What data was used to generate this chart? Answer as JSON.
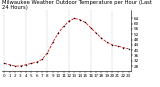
{
  "title": "Milwaukee Weather Outdoor Temperature per Hour (Last 24 Hours)",
  "hours": [
    0,
    1,
    2,
    3,
    4,
    5,
    6,
    7,
    8,
    9,
    10,
    11,
    12,
    13,
    14,
    15,
    16,
    17,
    18,
    19,
    20,
    21,
    22,
    23
  ],
  "temps": [
    30,
    29,
    28,
    28,
    29,
    30,
    31,
    33,
    38,
    46,
    53,
    58,
    62,
    64,
    63,
    61,
    57,
    53,
    49,
    46,
    44,
    43,
    42,
    41
  ],
  "line_color": "#cc0000",
  "marker_color": "#000000",
  "bg_color": "#ffffff",
  "grid_color": "#999999",
  "title_color": "#000000",
  "ylim": [
    24,
    70
  ],
  "ytick_values": [
    64,
    60,
    56,
    52,
    48,
    44,
    40,
    36,
    32,
    28
  ],
  "vgrid_positions": [
    0,
    4,
    8,
    12,
    16,
    20
  ],
  "title_fontsize": 3.8,
  "tick_fontsize": 3.0,
  "line_width": 0.55,
  "marker_size": 1.5
}
